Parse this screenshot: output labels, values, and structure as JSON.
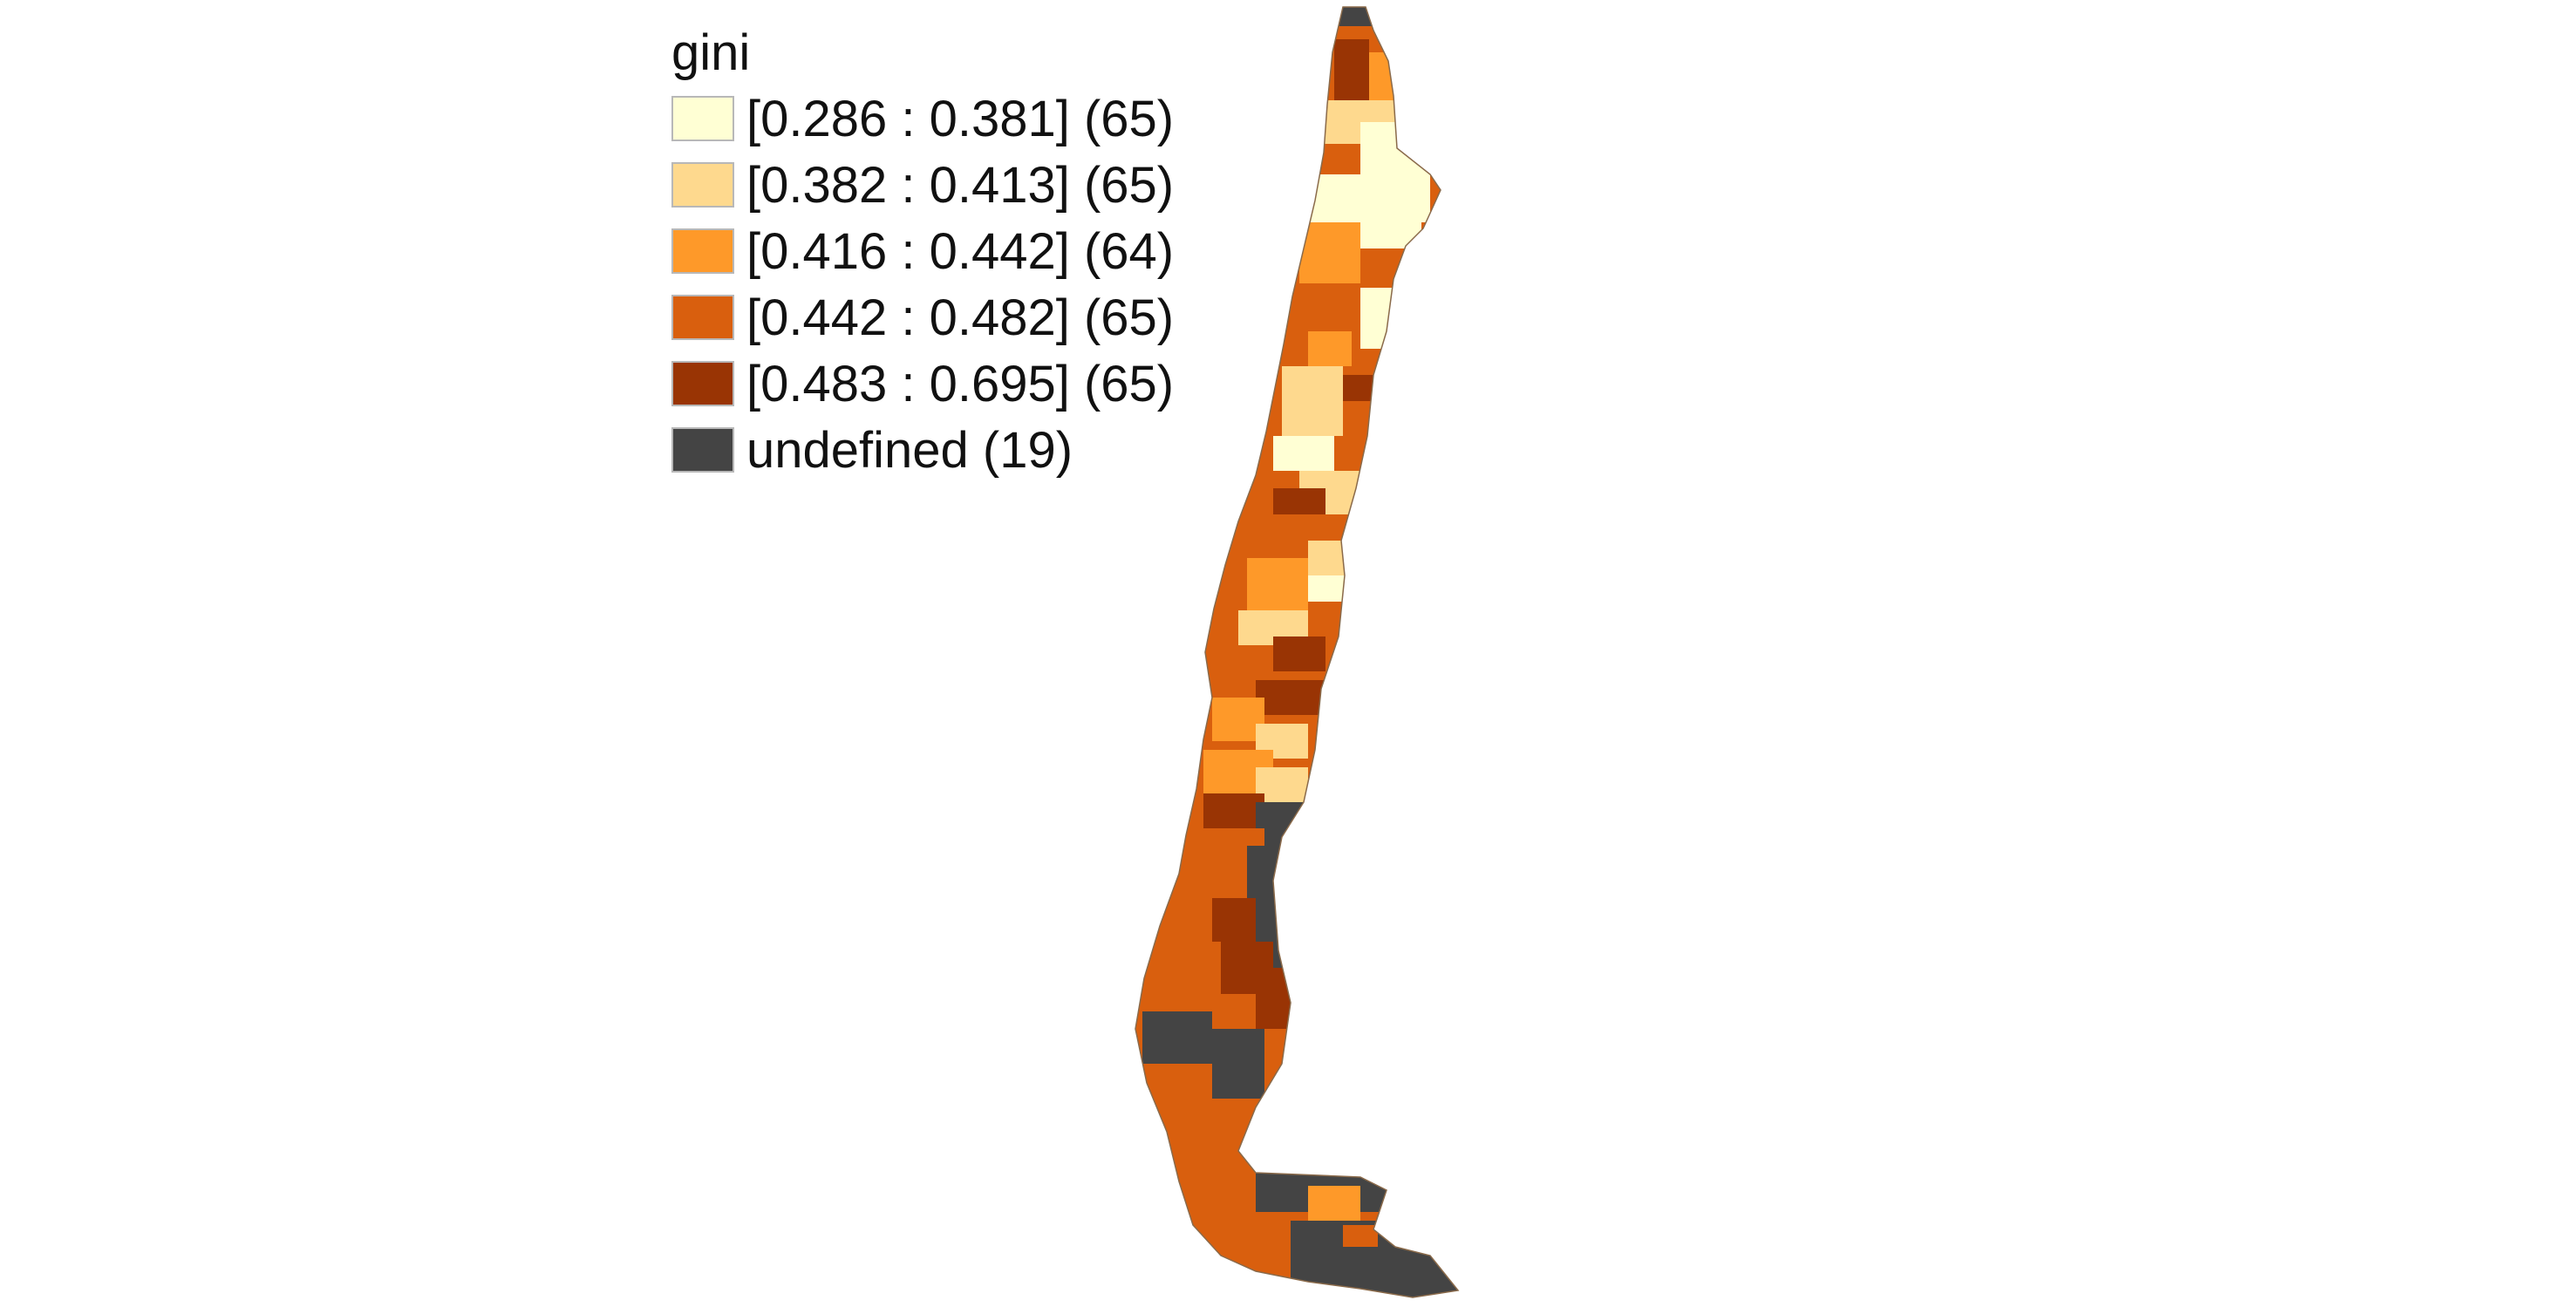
{
  "legend": {
    "title": "gini",
    "items": [
      {
        "label": "[0.286 : 0.381] (65)",
        "color": "#ffffd4"
      },
      {
        "label": "[0.382 : 0.413] (65)",
        "color": "#fed98e"
      },
      {
        "label": "[0.416 : 0.442] (64)",
        "color": "#fe9929"
      },
      {
        "label": "[0.442 : 0.482] (65)",
        "color": "#d95f0e"
      },
      {
        "label": "[0.483 : 0.695] (65)",
        "color": "#993404"
      },
      {
        "label": "undefined (19)",
        "color": "#444444"
      }
    ]
  }
}
